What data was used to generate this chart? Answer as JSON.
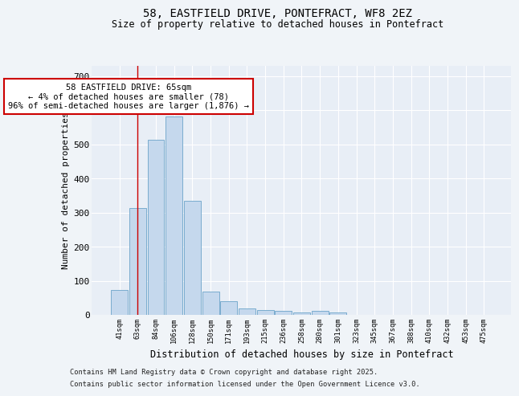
{
  "title_line1": "58, EASTFIELD DRIVE, PONTEFRACT, WF8 2EZ",
  "title_line2": "Size of property relative to detached houses in Pontefract",
  "xlabel": "Distribution of detached houses by size in Pontefract",
  "ylabel": "Number of detached properties",
  "categories": [
    "41sqm",
    "63sqm",
    "84sqm",
    "106sqm",
    "128sqm",
    "150sqm",
    "171sqm",
    "193sqm",
    "215sqm",
    "236sqm",
    "258sqm",
    "280sqm",
    "301sqm",
    "323sqm",
    "345sqm",
    "367sqm",
    "388sqm",
    "410sqm",
    "432sqm",
    "453sqm",
    "475sqm"
  ],
  "values": [
    72,
    313,
    513,
    582,
    335,
    68,
    40,
    20,
    15,
    11,
    8,
    11,
    7,
    0,
    0,
    0,
    0,
    0,
    0,
    0,
    0
  ],
  "bar_color": "#c5d8ed",
  "bar_edge_color": "#7aacce",
  "vline_x": 1.0,
  "vline_color": "#cc0000",
  "annotation_text": "58 EASTFIELD DRIVE: 65sqm\n← 4% of detached houses are smaller (78)\n96% of semi-detached houses are larger (1,876) →",
  "annotation_box_facecolor": "#ffffff",
  "annotation_box_edge": "#cc0000",
  "fig_bg_color": "#f0f4f8",
  "plot_bg_color": "#e8eef6",
  "grid_color": "#ffffff",
  "ylim": [
    0,
    730
  ],
  "yticks": [
    0,
    100,
    200,
    300,
    400,
    500,
    600,
    700
  ],
  "footer_line1": "Contains HM Land Registry data © Crown copyright and database right 2025.",
  "footer_line2": "Contains public sector information licensed under the Open Government Licence v3.0."
}
